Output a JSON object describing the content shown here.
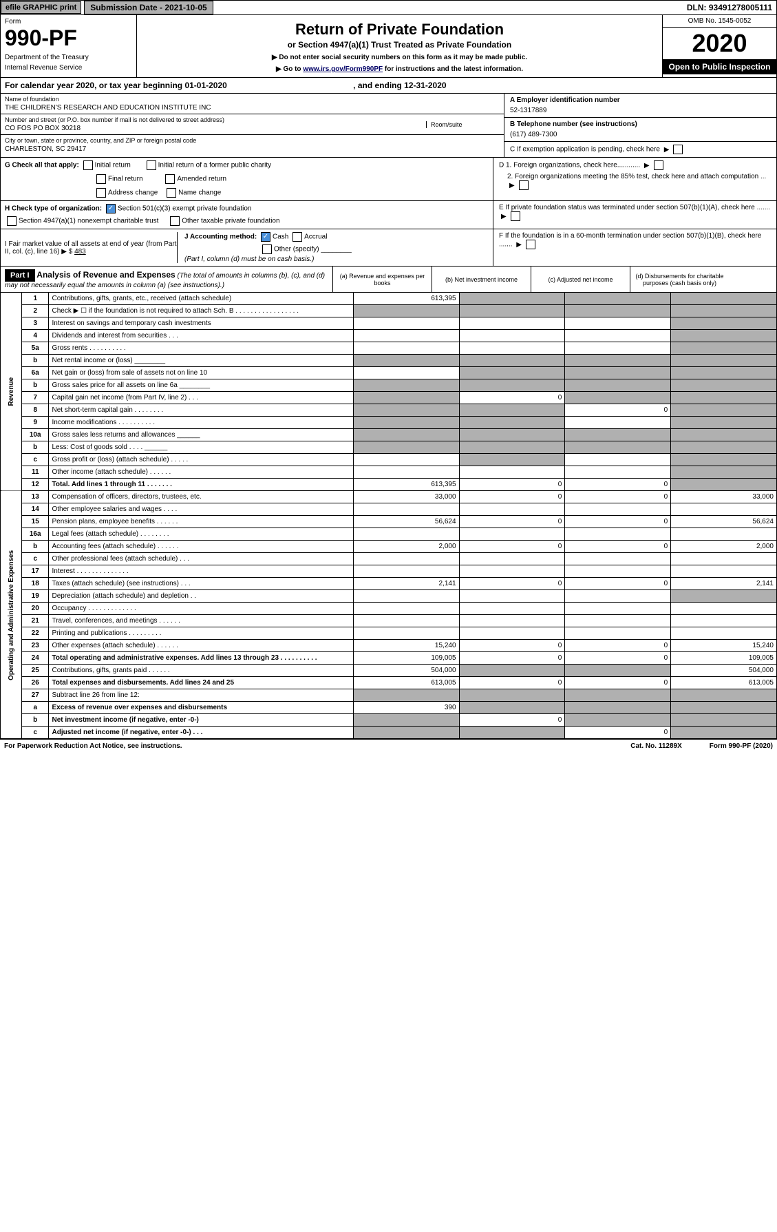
{
  "topbar": {
    "efile": "efile GRAPHIC print",
    "subdate_label": "Submission Date - 2021-10-05",
    "dln": "DLN: 93491278005111"
  },
  "header": {
    "form_word": "Form",
    "form_no": "990-PF",
    "dept1": "Department of the Treasury",
    "dept2": "Internal Revenue Service",
    "title": "Return of Private Foundation",
    "subtitle": "or Section 4947(a)(1) Trust Treated as Private Foundation",
    "note1": "▶ Do not enter social security numbers on this form as it may be made public.",
    "note2": "▶ Go to ",
    "link": "www.irs.gov/Form990PF",
    "note3": " for instructions and the latest information.",
    "omb": "OMB No. 1545-0052",
    "year": "2020",
    "open": "Open to Public Inspection"
  },
  "cal": {
    "text": "For calendar year 2020, or tax year beginning 01-01-2020",
    "mid": ", and ending 12-31-2020"
  },
  "entity": {
    "name_label": "Name of foundation",
    "name": "THE CHILDREN'S RESEARCH AND EDUCATION INSTITUTE INC",
    "addr_label": "Number and street (or P.O. box number if mail is not delivered to street address)",
    "room_label": "Room/suite",
    "addr": "CO FOS PO BOX 30218",
    "city_label": "City or town, state or province, country, and ZIP or foreign postal code",
    "city": "CHARLESTON, SC  29417",
    "ein_label": "A Employer identification number",
    "ein": "52-1317889",
    "tel_label": "B Telephone number (see instructions)",
    "tel": "(617) 489-7300",
    "c": "C If exemption application is pending, check here",
    "d1": "D 1. Foreign organizations, check here............",
    "d2": "2. Foreign organizations meeting the 85% test, check here and attach computation ...",
    "e": "E  If private foundation status was terminated under section 507(b)(1)(A), check here .......",
    "f": "F  If the foundation is in a 60-month termination under section 507(b)(1)(B), check here .......",
    "g": "G Check all that apply:",
    "g_opts": [
      "Initial return",
      "Initial return of a former public charity",
      "Final return",
      "Amended return",
      "Address change",
      "Name change"
    ],
    "h": "H Check type of organization:",
    "h_opts": [
      "Section 501(c)(3) exempt private foundation",
      "Section 4947(a)(1) nonexempt charitable trust",
      "Other taxable private foundation"
    ],
    "i": "I Fair market value of all assets at end of year (from Part II, col. (c), line 16) ▶ $",
    "i_val": "483",
    "j": "J Accounting method:",
    "j_opts": [
      "Cash",
      "Accrual",
      "Other (specify)"
    ],
    "j_note": "(Part I, column (d) must be on cash basis.)"
  },
  "part1": {
    "label": "Part I",
    "title": "Analysis of Revenue and Expenses",
    "title_note": "(The total of amounts in columns (b), (c), and (d) may not necessarily equal the amounts in column (a) (see instructions).)",
    "col_a": "(a)   Revenue and expenses per books",
    "col_b": "(b)  Net investment income",
    "col_c": "(c)  Adjusted net income",
    "col_d": "(d)  Disbursements for charitable purposes (cash basis only)"
  },
  "sides": {
    "rev": "Revenue",
    "exp": "Operating and Administrative Expenses"
  },
  "rows": [
    {
      "n": "1",
      "d": "Contributions, gifts, grants, etc., received (attach schedule)",
      "a": "613,395",
      "b_g": true,
      "c_g": true,
      "d_g": true
    },
    {
      "n": "2",
      "d": "Check ▶ ☐ if the foundation is not required to attach Sch. B   .  .  .  .  .  .  .  .  .  .  .  .  .  .  .  .  .",
      "a_g": true,
      "b_g": true,
      "c_g": true,
      "d_g": true
    },
    {
      "n": "3",
      "d": "Interest on savings and temporary cash investments",
      "d_g": true
    },
    {
      "n": "4",
      "d": "Dividends and interest from securities   .   .   .",
      "d_g": true
    },
    {
      "n": "5a",
      "d": "Gross rents   .   .   .   .   .   .   .   .   .   .",
      "d_g": true
    },
    {
      "n": "b",
      "d": "Net rental income or (loss)  ________",
      "a_g": true,
      "b_g": true,
      "c_g": true,
      "d_g": true
    },
    {
      "n": "6a",
      "d": "Net gain or (loss) from sale of assets not on line 10",
      "b_g": true,
      "c_g": true,
      "d_g": true
    },
    {
      "n": "b",
      "d": "Gross sales price for all assets on line 6a  ________",
      "a_g": true,
      "b_g": true,
      "c_g": true,
      "d_g": true
    },
    {
      "n": "7",
      "d": "Capital gain net income (from Part IV, line 2)   .   .   .",
      "a_g": true,
      "b": "0",
      "c_g": true,
      "d_g": true
    },
    {
      "n": "8",
      "d": "Net short-term capital gain   .   .   .   .   .   .   .   .",
      "a_g": true,
      "b_g": true,
      "c": "0",
      "d_g": true
    },
    {
      "n": "9",
      "d": "Income modifications   .   .   .   .   .   .   .   .   .   .",
      "a_g": true,
      "b_g": true,
      "d_g": true
    },
    {
      "n": "10a",
      "d": "Gross sales less returns and allowances  ______",
      "a_g": true,
      "b_g": true,
      "c_g": true,
      "d_g": true
    },
    {
      "n": "b",
      "d": "Less: Cost of goods sold   .   .   .   .   ______",
      "a_g": true,
      "b_g": true,
      "c_g": true,
      "d_g": true
    },
    {
      "n": "c",
      "d": "Gross profit or (loss) (attach schedule)   .   .   .   .   .",
      "b_g": true,
      "d_g": true
    },
    {
      "n": "11",
      "d": "Other income (attach schedule)   .   .   .   .   .   .",
      "d_g": true
    },
    {
      "n": "12",
      "d": "Total. Add lines 1 through 11   .   .   .   .   .   .   .",
      "bold": true,
      "a": "613,395",
      "b": "0",
      "c": "0",
      "d_g": true
    },
    {
      "n": "13",
      "d": "Compensation of officers, directors, trustees, etc.",
      "a": "33,000",
      "b": "0",
      "c": "0",
      "dd": "33,000"
    },
    {
      "n": "14",
      "d": "Other employee salaries and wages   .   .   .   ."
    },
    {
      "n": "15",
      "d": "Pension plans, employee benefits   .   .   .   .   .   .",
      "a": "56,624",
      "b": "0",
      "c": "0",
      "dd": "56,624"
    },
    {
      "n": "16a",
      "d": "Legal fees (attach schedule)   .   .   .   .   .   .   .   ."
    },
    {
      "n": "b",
      "d": "Accounting fees (attach schedule)   .   .   .   .   .   .",
      "a": "2,000",
      "b": "0",
      "c": "0",
      "dd": "2,000"
    },
    {
      "n": "c",
      "d": "Other professional fees (attach schedule)   .   .   ."
    },
    {
      "n": "17",
      "d": "Interest   .   .   .   .   .   .   .   .   .   .   .   .   .   ."
    },
    {
      "n": "18",
      "d": "Taxes (attach schedule) (see instructions)   .   .   .",
      "a": "2,141",
      "b": "0",
      "c": "0",
      "dd": "2,141"
    },
    {
      "n": "19",
      "d": "Depreciation (attach schedule) and depletion   .   .",
      "d_g": true
    },
    {
      "n": "20",
      "d": "Occupancy   .   .   .   .   .   .   .   .   .   .   .   .   ."
    },
    {
      "n": "21",
      "d": "Travel, conferences, and meetings   .   .   .   .   .   ."
    },
    {
      "n": "22",
      "d": "Printing and publications   .   .   .   .   .   .   .   .   ."
    },
    {
      "n": "23",
      "d": "Other expenses (attach schedule)   .   .   .   .   .   .",
      "a": "15,240",
      "b": "0",
      "c": "0",
      "dd": "15,240"
    },
    {
      "n": "24",
      "d": "Total operating and administrative expenses. Add lines 13 through 23   .   .   .   .   .   .   .   .   .   .",
      "bold": true,
      "a": "109,005",
      "b": "0",
      "c": "0",
      "dd": "109,005"
    },
    {
      "n": "25",
      "d": "Contributions, gifts, grants paid   .   .   .   .   .   .",
      "a": "504,000",
      "b_g": true,
      "c_g": true,
      "dd": "504,000"
    },
    {
      "n": "26",
      "d": "Total expenses and disbursements. Add lines 24 and 25",
      "bold": true,
      "a": "613,005",
      "b": "0",
      "c": "0",
      "dd": "613,005"
    },
    {
      "n": "27",
      "d": "Subtract line 26 from line 12:",
      "a_g": true,
      "b_g": true,
      "c_g": true,
      "d_g": true
    },
    {
      "n": "a",
      "d": "Excess of revenue over expenses and disbursements",
      "bold": true,
      "a": "390",
      "b_g": true,
      "c_g": true,
      "d_g": true
    },
    {
      "n": "b",
      "d": "Net investment income (if negative, enter -0-)",
      "bold": true,
      "a_g": true,
      "b": "0",
      "c_g": true,
      "d_g": true
    },
    {
      "n": "c",
      "d": "Adjusted net income (if negative, enter -0-)   .   .   .",
      "bold": true,
      "a_g": true,
      "b_g": true,
      "c": "0",
      "d_g": true
    }
  ],
  "footer": {
    "left": "For Paperwork Reduction Act Notice, see instructions.",
    "mid": "Cat. No. 11289X",
    "right": "Form 990-PF (2020)"
  }
}
